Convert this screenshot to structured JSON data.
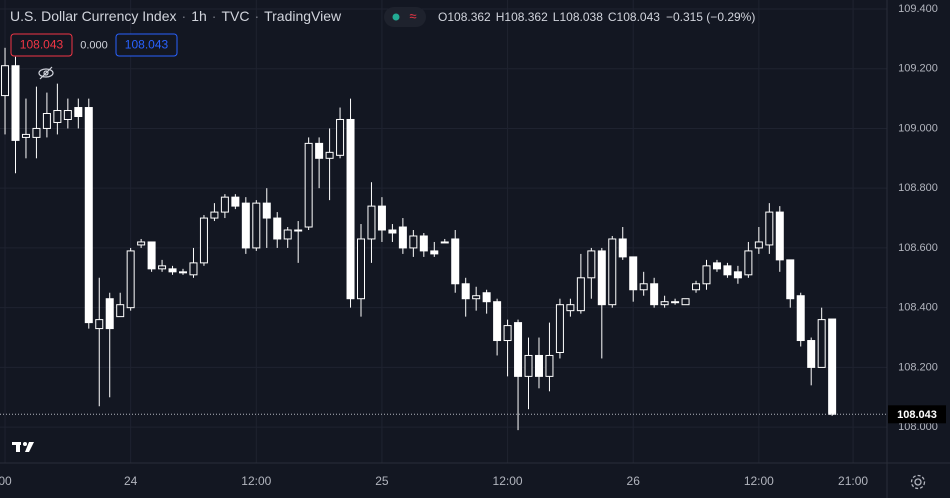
{
  "chart_data": {
    "type": "candlestick",
    "title": "U.S. Dollar Currency Index",
    "interval": "1h",
    "exchange": "TVC",
    "source": "TradingView",
    "legend": {
      "o_label": "O",
      "o": "108.362",
      "h_label": "H",
      "h": "108.362",
      "l_label": "L",
      "l": "108.038",
      "c_label": "C",
      "c": "108.043",
      "change": "−0.315 (−0.29%)"
    },
    "price_boxes": [
      "108.043",
      "0.000",
      "108.043"
    ],
    "color": "#ffffff",
    "x": [
      0,
      1,
      2,
      3,
      4,
      5,
      6,
      7,
      8,
      9,
      10,
      11,
      12,
      13,
      14,
      15,
      16,
      17,
      18,
      19,
      20,
      21,
      22,
      23,
      24,
      25,
      26,
      27,
      28,
      29,
      30,
      31,
      32,
      33,
      34,
      35,
      36,
      37,
      38,
      39,
      40,
      41,
      42,
      43,
      44,
      45,
      46,
      47,
      48,
      49,
      50,
      51,
      52,
      53,
      54,
      55,
      56,
      57,
      58,
      59,
      60,
      61,
      62,
      63,
      64,
      65,
      66,
      67,
      68,
      69,
      70,
      71,
      72,
      73,
      74,
      75,
      76,
      77,
      78,
      79
    ],
    "open": [
      109.11,
      109.21,
      108.97,
      108.97,
      109.0,
      109.02,
      109.03,
      109.07,
      109.07,
      108.33,
      108.43,
      108.37,
      108.4,
      108.61,
      108.62,
      108.53,
      108.53,
      108.52,
      108.51,
      108.55,
      108.7,
      108.72,
      108.77,
      108.75,
      108.6,
      108.75,
      108.7,
      108.63,
      108.66,
      108.67,
      108.95,
      108.9,
      108.91,
      109.03,
      108.43,
      108.63,
      108.74,
      108.66,
      108.67,
      108.6,
      108.64,
      108.59,
      108.62,
      108.63,
      108.48,
      108.43,
      108.45,
      108.42,
      108.29,
      108.35,
      108.17,
      108.24,
      108.17,
      108.25,
      108.39,
      108.39,
      108.5,
      108.59,
      108.41,
      108.63,
      108.57,
      108.46,
      108.48,
      108.41,
      108.42,
      108.41,
      108.46,
      108.48,
      108.55,
      108.54,
      108.52,
      108.51,
      108.6,
      108.61,
      108.72,
      108.56,
      108.44,
      108.29,
      108.2,
      108.362
    ],
    "high": [
      109.27,
      109.24,
      109.1,
      109.14,
      109.12,
      109.15,
      109.1,
      109.1,
      109.1,
      108.5,
      108.45,
      108.45,
      108.6,
      108.63,
      108.62,
      108.56,
      108.54,
      108.53,
      108.6,
      108.71,
      108.75,
      108.78,
      108.78,
      108.77,
      108.76,
      108.8,
      108.72,
      108.67,
      108.69,
      108.97,
      108.97,
      109.0,
      109.07,
      109.1,
      108.68,
      108.82,
      108.77,
      108.68,
      108.7,
      108.66,
      108.65,
      108.62,
      108.63,
      108.66,
      108.5,
      108.47,
      108.46,
      108.43,
      108.36,
      108.36,
      108.3,
      108.3,
      108.35,
      108.43,
      108.43,
      108.58,
      108.6,
      108.6,
      108.64,
      108.67,
      108.57,
      108.52,
      108.5,
      108.44,
      108.43,
      108.43,
      108.49,
      108.56,
      108.56,
      108.55,
      108.54,
      108.62,
      108.67,
      108.75,
      108.74,
      108.56,
      108.45,
      108.3,
      108.4,
      108.362
    ],
    "low": [
      108.98,
      108.85,
      108.9,
      108.9,
      108.97,
      108.98,
      109.0,
      109.0,
      108.33,
      108.07,
      108.1,
      108.37,
      108.39,
      108.6,
      108.52,
      108.52,
      108.51,
      108.51,
      108.5,
      108.54,
      108.69,
      108.7,
      108.73,
      108.58,
      108.59,
      108.6,
      108.6,
      108.6,
      108.55,
      108.66,
      108.8,
      108.76,
      108.9,
      108.4,
      108.37,
      108.55,
      108.62,
      108.62,
      108.58,
      108.57,
      108.57,
      108.57,
      108.62,
      108.45,
      108.37,
      108.39,
      108.38,
      108.24,
      108.17,
      107.99,
      108.06,
      108.13,
      108.12,
      108.23,
      108.37,
      108.38,
      108.43,
      108.23,
      108.4,
      108.56,
      108.42,
      108.44,
      108.4,
      108.4,
      108.41,
      108.41,
      108.45,
      108.46,
      108.52,
      108.5,
      108.48,
      108.5,
      108.58,
      108.58,
      108.52,
      108.4,
      108.27,
      108.14,
      108.2,
      108.038
    ],
    "close": [
      109.21,
      108.96,
      108.98,
      109.0,
      109.05,
      109.06,
      109.06,
      109.04,
      108.35,
      108.36,
      108.33,
      108.41,
      108.59,
      108.62,
      108.53,
      108.54,
      108.52,
      108.52,
      108.55,
      108.7,
      108.72,
      108.77,
      108.74,
      108.6,
      108.75,
      108.7,
      108.63,
      108.66,
      108.66,
      108.95,
      108.9,
      108.92,
      109.03,
      108.43,
      108.63,
      108.74,
      108.66,
      108.65,
      108.6,
      108.64,
      108.59,
      108.58,
      108.62,
      108.48,
      108.43,
      108.44,
      108.42,
      108.29,
      108.34,
      108.17,
      108.24,
      108.17,
      108.24,
      108.41,
      108.41,
      108.5,
      108.59,
      108.41,
      108.63,
      108.57,
      108.46,
      108.48,
      108.41,
      108.42,
      108.42,
      108.43,
      108.48,
      108.54,
      108.53,
      108.51,
      108.5,
      108.59,
      108.62,
      108.72,
      108.56,
      108.43,
      108.29,
      108.2,
      108.36,
      108.043
    ],
    "last_price": {
      "value": 108.043,
      "label": "108.043"
    },
    "xlim": [
      -0.48,
      84.24
    ],
    "xticks": [
      {
        "value": 0,
        "label": "00"
      },
      {
        "value": 12,
        "label": "24"
      },
      {
        "value": 24,
        "label": "12:00"
      },
      {
        "value": 36,
        "label": "25"
      },
      {
        "value": 48,
        "label": "12:00"
      },
      {
        "value": 60,
        "label": "26"
      },
      {
        "value": 72,
        "label": "12:00"
      },
      {
        "value": 81,
        "label": "21:00"
      }
    ],
    "ylim": [
      107.88,
      109.43
    ],
    "yticks": [
      {
        "value": 109.4,
        "label": "109.400"
      },
      {
        "value": 109.2,
        "label": "109.200"
      },
      {
        "value": 109.0,
        "label": "109.000"
      },
      {
        "value": 108.8,
        "label": "108.800"
      },
      {
        "value": 108.6,
        "label": "108.600"
      },
      {
        "value": 108.4,
        "label": "108.400"
      },
      {
        "value": 108.2,
        "label": "108.200"
      },
      {
        "value": 108.0,
        "label": "108.000"
      }
    ],
    "grid": true
  }
}
